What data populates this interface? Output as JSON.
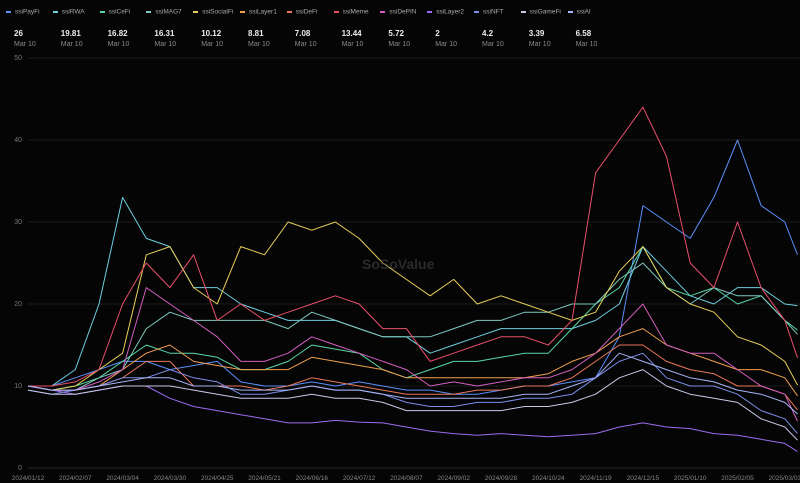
{
  "legend_date": "Mar 10",
  "watermark": "SoSoValue",
  "chart_data": {
    "type": "line",
    "title": "",
    "xlabel": "",
    "ylabel": "",
    "ylim": [
      0,
      50
    ],
    "yticks": [
      0,
      10,
      20,
      30,
      40,
      50
    ],
    "grid": true,
    "legend_placement": "top",
    "x_days_since_start": [
      0,
      13,
      26,
      39,
      52,
      65,
      78,
      91,
      104,
      117,
      130,
      143,
      156,
      169,
      182,
      195,
      208,
      221,
      234,
      247,
      260,
      273,
      286,
      299,
      312,
      325,
      338,
      351,
      364,
      377,
      390,
      403,
      416,
      423
    ],
    "xtick_days": [
      0,
      26,
      52,
      78,
      104,
      130,
      156,
      182,
      208,
      234,
      260,
      286,
      312,
      338,
      364,
      390,
      416
    ],
    "xtick_labels": [
      "2024/01/12",
      "2024/02/07",
      "2024/03/04",
      "2024/03/30",
      "2024/04/25",
      "2024/05/21",
      "2024/06/16",
      "2024/07/12",
      "2024/08/07",
      "2024/09/02",
      "2024/09/28",
      "2024/10/24",
      "2024/11/19",
      "2024/12/15",
      "2025/01/10",
      "2025/02/05",
      "2025/03/03"
    ],
    "series": [
      {
        "name": "ssiPayFi",
        "latest": "26",
        "color": "#5b8ff9",
        "values": [
          10,
          10,
          11,
          12,
          13,
          13,
          12,
          12.5,
          13,
          10.5,
          10,
          10,
          10.5,
          10,
          10.5,
          10,
          9.5,
          9.5,
          9,
          9,
          9.5,
          10,
          10,
          10.5,
          11,
          16,
          32,
          30,
          28,
          33,
          40,
          32,
          30,
          26
        ]
      },
      {
        "name": "ssiRWA",
        "latest": "19.81",
        "color": "#6fcfe0",
        "values": [
          10,
          10,
          12,
          20,
          33,
          28,
          27,
          22,
          22,
          20,
          19,
          18,
          18,
          18,
          17,
          16,
          16,
          14,
          15,
          16,
          17,
          17,
          17,
          17,
          18,
          20,
          27,
          24,
          21,
          20,
          22,
          22,
          20,
          19.81
        ]
      },
      {
        "name": "ssiCeFi",
        "latest": "16.82",
        "color": "#5ad8a6",
        "values": [
          10,
          9.5,
          10,
          11,
          13,
          15,
          14,
          14,
          13.5,
          12,
          12,
          13,
          15,
          14.5,
          14,
          12,
          11,
          12,
          13,
          13,
          13.5,
          14,
          14,
          17,
          20,
          22,
          27,
          22,
          21,
          22,
          20,
          21,
          18,
          16.82
        ]
      },
      {
        "name": "ssiMAG7",
        "latest": "16.31",
        "color": "#7fc8c0",
        "values": [
          10,
          9.5,
          9.5,
          11,
          12,
          17,
          19,
          18,
          18,
          18,
          18,
          17,
          19,
          18,
          17,
          16,
          16,
          16,
          17,
          18,
          18,
          19,
          19,
          20,
          20,
          23,
          25,
          22,
          20,
          22,
          21,
          21,
          18,
          16.31
        ]
      },
      {
        "name": "ssiSocialFi",
        "latest": "10.12",
        "color": "#e8cf5a",
        "values": [
          10,
          9.5,
          10,
          12,
          14,
          26,
          27,
          22,
          20,
          27,
          26,
          30,
          29,
          30,
          28,
          25,
          23,
          21,
          23,
          20,
          21,
          20,
          19,
          18,
          19,
          24,
          27,
          22,
          20,
          19,
          16,
          15,
          13,
          10.12
        ]
      },
      {
        "name": "ssiLayer1",
        "latest": "8.81",
        "color": "#f0a050",
        "values": [
          10,
          9.5,
          9.5,
          10,
          12,
          14,
          15,
          13,
          12.5,
          12,
          12,
          12,
          13.5,
          13,
          12.5,
          12,
          11,
          11,
          11,
          11,
          11,
          11,
          11.5,
          13,
          14,
          16,
          17,
          15,
          14,
          13,
          12,
          12,
          11,
          8.81
        ]
      },
      {
        "name": "ssiDeFi",
        "latest": "7.08",
        "color": "#e8785a",
        "values": [
          10,
          9.5,
          9.5,
          10,
          11,
          13,
          13,
          10,
          10,
          10,
          9.5,
          10,
          11,
          10.5,
          10,
          9.5,
          9,
          9,
          9,
          9.5,
          9.5,
          10,
          10,
          11,
          13,
          15,
          15,
          13,
          12,
          11.5,
          10,
          10,
          9,
          7.08
        ]
      },
      {
        "name": "ssiMeme",
        "latest": "13.44",
        "color": "#e8506a",
        "values": [
          10,
          10,
          10.5,
          12,
          20,
          25,
          22,
          26,
          18,
          20,
          18,
          19,
          20,
          21,
          20,
          17,
          17,
          13,
          14,
          15,
          16,
          16,
          15,
          18,
          36,
          40,
          44,
          38,
          25,
          22,
          30,
          22,
          18,
          13.44
        ]
      },
      {
        "name": "ssiDePIN",
        "latest": "5.72",
        "color": "#d25fc0",
        "values": [
          10,
          9.5,
          9.5,
          10.5,
          12,
          22,
          20,
          18,
          16,
          13,
          13,
          14,
          16,
          15,
          14,
          13,
          12,
          10,
          10.5,
          10,
          10.5,
          11,
          11,
          12,
          14,
          17,
          20,
          15,
          14,
          14,
          12,
          10,
          9,
          5.72
        ]
      },
      {
        "name": "ssiLayer2",
        "latest": "2",
        "color": "#9b6cf0",
        "values": [
          10,
          9.5,
          9,
          9.5,
          10,
          10,
          8.5,
          7.5,
          7,
          6.5,
          6,
          5.5,
          5.5,
          5.8,
          5.6,
          5.5,
          5,
          4.5,
          4.2,
          4,
          4.2,
          4,
          3.8,
          4,
          4.2,
          5,
          5.5,
          5,
          4.8,
          4.2,
          4,
          3.5,
          3,
          2
        ]
      },
      {
        "name": "ssiNFT",
        "latest": "4.2",
        "color": "#7b8ee8",
        "values": [
          9.5,
          9,
          9.5,
          10,
          11,
          11,
          12,
          11,
          10.5,
          9,
          9,
          9.5,
          10,
          9.5,
          9.5,
          9,
          8,
          7.5,
          7.5,
          8,
          8,
          8.5,
          8.5,
          9,
          11,
          13,
          14,
          11,
          10,
          10,
          9,
          7,
          6,
          4.2
        ]
      },
      {
        "name": "ssiGameFi",
        "latest": "3.39",
        "color": "#c8c8e8",
        "values": [
          9.5,
          9,
          9,
          9.5,
          10,
          10,
          10,
          9.5,
          9,
          8.5,
          8.5,
          8.5,
          9,
          8.5,
          8.5,
          8,
          7,
          7,
          7,
          7,
          7,
          7.5,
          7.5,
          8,
          9,
          11,
          12,
          10,
          9,
          8.5,
          8,
          6,
          5,
          3.39
        ]
      },
      {
        "name": "ssiAI",
        "latest": "6.58",
        "color": "#a9b4f5",
        "values": [
          10,
          9.5,
          9.5,
          10,
          10.5,
          11,
          11,
          10,
          10,
          9.5,
          9.5,
          9.5,
          10,
          9.5,
          9.5,
          9,
          8.5,
          8.5,
          8.5,
          8.5,
          8.5,
          9,
          9,
          10,
          11,
          14,
          13,
          12,
          11,
          10.5,
          9.5,
          9,
          8,
          6.58
        ]
      }
    ]
  }
}
